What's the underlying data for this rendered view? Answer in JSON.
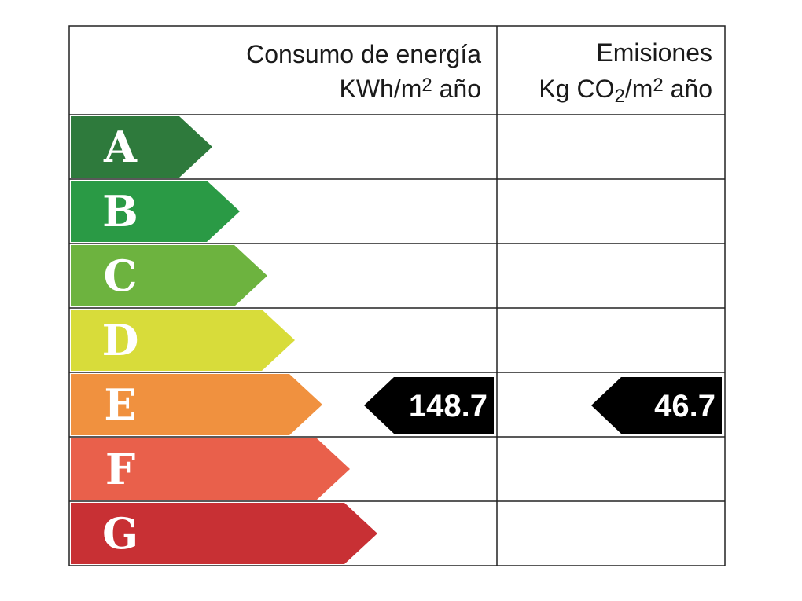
{
  "header": {
    "energy": {
      "title": "Consumo de energía",
      "unit": [
        {
          "text": "KWh/m"
        },
        {
          "text": "2",
          "pos": "sup"
        },
        {
          "text": " año"
        }
      ]
    },
    "emissions": {
      "title": "Emisiones",
      "unit": [
        {
          "text": "Kg CO"
        },
        {
          "text": "2",
          "pos": "sub"
        },
        {
          "text": "/m"
        },
        {
          "text": "2",
          "pos": "sup"
        },
        {
          "text": " año"
        }
      ]
    }
  },
  "classes": [
    {
      "letter": "A",
      "color": "#2e7a3c"
    },
    {
      "letter": "B",
      "color": "#2a9a45"
    },
    {
      "letter": "C",
      "color": "#6db33f"
    },
    {
      "letter": "D",
      "color": "#d8dc3a"
    },
    {
      "letter": "E",
      "color": "#f0913f"
    },
    {
      "letter": "F",
      "color": "#e9604b"
    },
    {
      "letter": "G",
      "color": "#c83034"
    }
  ],
  "energy_rating": {
    "class": "E",
    "value": "148.7"
  },
  "emissions_rating": {
    "class": "E",
    "value": "46.7"
  }
}
